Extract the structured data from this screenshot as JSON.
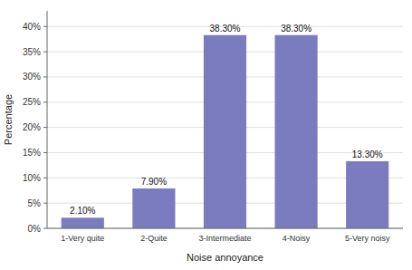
{
  "chart_data": {
    "type": "bar",
    "categories": [
      "1-Very quite",
      "2-Quite",
      "3-Intermediate",
      "4-Noisy",
      "5-Very noisy"
    ],
    "values": [
      2.1,
      7.9,
      38.3,
      38.3,
      13.3
    ],
    "value_labels": [
      "2.10%",
      "7.90%",
      "38.30%",
      "38.30%",
      "13.30%"
    ],
    "data_labels": true,
    "color": "#7b7bbf",
    "xlabel": "Noise annoyance",
    "ylabel": "Percentage",
    "ylim": [
      0,
      43.1
    ],
    "yticks": [
      {
        "value": 0,
        "label": "0%"
      },
      {
        "value": 5,
        "label": "5%"
      },
      {
        "value": 10,
        "label": "10%"
      },
      {
        "value": 15,
        "label": "15%"
      },
      {
        "value": 20,
        "label": "20%"
      },
      {
        "value": 25,
        "label": "25%"
      },
      {
        "value": 30,
        "label": "30%"
      },
      {
        "value": 35,
        "label": "35%"
      },
      {
        "value": 40,
        "label": "40%"
      }
    ],
    "grid": true
  }
}
